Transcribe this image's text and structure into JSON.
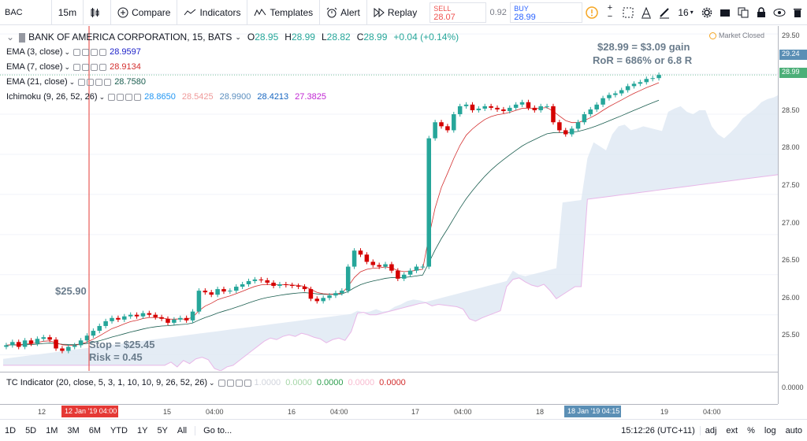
{
  "toolbar": {
    "symbol": "BAC",
    "interval": "15m",
    "compare": "Compare",
    "indicators": "Indicators",
    "templates": "Templates",
    "alert": "Alert",
    "replay": "Replay",
    "sell_label": "SELL",
    "sell_value": "28.07",
    "spread": "0.92",
    "buy_label": "BUY",
    "buy_value": "28.99",
    "font_size": "16"
  },
  "legend": {
    "title": "BANK OF AMERICA CORPORATION, 15, BATS",
    "ohlc": {
      "o_label": "O",
      "o": "28.95",
      "h_label": "H",
      "h": "28.99",
      "l_label": "L",
      "l": "28.82",
      "c_label": "C",
      "c": "28.99",
      "chg": "+0.04 (+0.14%)"
    },
    "ema3": {
      "label": "EMA (3, close)",
      "value": "28.9597",
      "color": "#1e22c9"
    },
    "ema7": {
      "label": "EMA (7, close)",
      "value": "28.9134",
      "color": "#d32f2f"
    },
    "ema21": {
      "label": "EMA (21, close)",
      "value": "28.7580",
      "color": "#1b5e50"
    },
    "ichimoku": {
      "label": "Ichimoku (9, 26, 52, 26)",
      "v1": "28.8650",
      "v2": "28.5425",
      "v3": "28.9900",
      "v4": "28.4213",
      "v5": "27.3825"
    },
    "market_status": "Market Closed"
  },
  "annotations": {
    "entry": "$25.90",
    "stop": "Stop = $25.45",
    "risk": "Risk = 0.45",
    "gain": "$28.99 = $3.09  gain",
    "ror": "RoR = 686% or 6.8 R"
  },
  "price_axis": {
    "labels": [
      "29.50",
      "29.00",
      "28.50",
      "28.00",
      "27.50",
      "27.00",
      "26.50",
      "26.00",
      "25.50"
    ],
    "marker_1": "29.24",
    "marker_2": "28.99",
    "sub_label": "0.0000"
  },
  "time_axis": {
    "labels": [
      "12",
      "15",
      "04:00",
      "16",
      "04:00",
      "17",
      "04:00",
      "18",
      "19",
      "04:00"
    ],
    "highlight_1": "12 Jan '19   04:00",
    "highlight_2": "18 Jan '19   04:15"
  },
  "tc_indicator": {
    "label": "TC Indicator (20, close, 5, 3, 1, 10, 10, 9, 26, 52, 26)",
    "v1": "1.0000",
    "v2": "0.0000",
    "v3": "0.0000",
    "v4": "0.0000",
    "v5": "0.0000"
  },
  "bottombar": {
    "ranges": [
      "1D",
      "5D",
      "1M",
      "3M",
      "6M",
      "YTD",
      "1Y",
      "5Y",
      "All"
    ],
    "goto": "Go to...",
    "clock": "15:12:26 (UTC+11)",
    "adj": "adj",
    "ext": "ext",
    "pct": "%",
    "log": "log",
    "auto": "auto"
  },
  "chart_data": {
    "type": "candlestick",
    "ylim": [
      25.3,
      29.6
    ],
    "close": [
      25.62,
      25.66,
      25.6,
      25.68,
      25.64,
      25.7,
      25.72,
      25.69,
      25.58,
      25.55,
      25.6,
      25.62,
      25.68,
      25.74,
      25.8,
      25.86,
      25.92,
      25.96,
      25.94,
      25.98,
      26.0,
      25.98,
      26.02,
      26.0,
      25.97,
      25.95,
      25.9,
      25.94,
      25.96,
      25.93,
      26.04,
      26.3,
      26.28,
      26.25,
      26.32,
      26.29,
      26.3,
      26.35,
      26.38,
      26.42,
      26.44,
      26.43,
      26.4,
      26.36,
      26.38,
      26.37,
      26.36,
      26.35,
      26.32,
      26.2,
      26.17,
      26.21,
      26.24,
      26.27,
      26.3,
      26.6,
      26.8,
      26.75,
      26.66,
      26.62,
      26.6,
      26.63,
      26.55,
      26.45,
      26.5,
      26.55,
      26.6,
      26.6,
      28.2,
      28.4,
      28.35,
      28.3,
      28.5,
      28.6,
      28.62,
      28.55,
      28.57,
      28.6,
      28.58,
      28.56,
      28.54,
      28.58,
      28.62,
      28.65,
      28.58,
      28.55,
      28.6,
      28.6,
      28.4,
      28.3,
      28.25,
      28.32,
      28.4,
      28.5,
      28.56,
      28.62,
      28.7,
      28.74,
      28.76,
      28.8,
      28.85,
      28.88,
      28.9,
      28.94,
      28.95,
      28.99
    ]
  }
}
